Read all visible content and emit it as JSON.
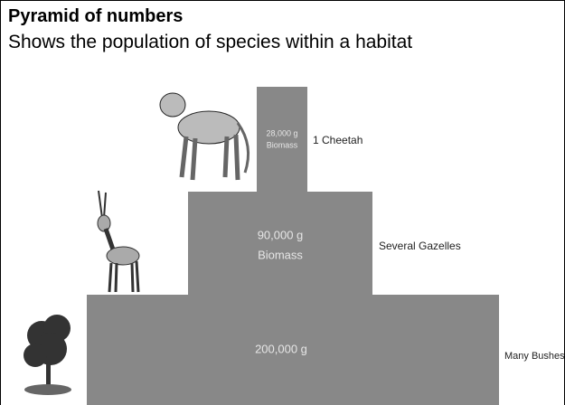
{
  "header": {
    "title": "Pyramid of numbers",
    "subtitle": "Shows the population of species within a habitat"
  },
  "levels": [
    {
      "lines": [
        "28,000 g",
        "Biomass"
      ],
      "label": "1 Cheetah"
    },
    {
      "lines": [
        "90,000 g",
        "Biomass"
      ],
      "label": "Several Gazelles"
    },
    {
      "lines": [
        "200,000 g"
      ],
      "label": "Many Bushes"
    }
  ]
}
